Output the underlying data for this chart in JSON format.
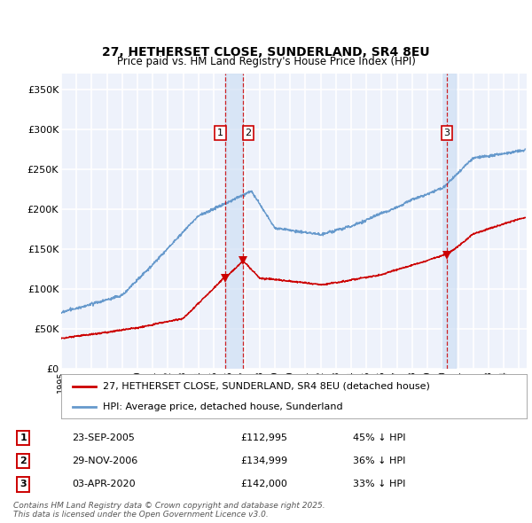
{
  "title": "27, HETHERSET CLOSE, SUNDERLAND, SR4 8EU",
  "subtitle": "Price paid vs. HM Land Registry's House Price Index (HPI)",
  "ylabel_ticks": [
    "£0",
    "£50K",
    "£100K",
    "£150K",
    "£200K",
    "£250K",
    "£300K",
    "£350K"
  ],
  "ytick_values": [
    0,
    50000,
    100000,
    150000,
    200000,
    250000,
    300000,
    350000
  ],
  "ylim": [
    0,
    370000
  ],
  "xlim_start": 1995.0,
  "xlim_end": 2025.5,
  "transactions": [
    {
      "label": "1",
      "date": "23-SEP-2005",
      "price": 112995,
      "pct": "45% ↓ HPI",
      "x_year": 2005.73
    },
    {
      "label": "2",
      "date": "29-NOV-2006",
      "price": 134999,
      "pct": "36% ↓ HPI",
      "x_year": 2006.91
    },
    {
      "label": "3",
      "date": "03-APR-2020",
      "price": 142000,
      "pct": "33% ↓ HPI",
      "x_year": 2020.26
    }
  ],
  "legend_entries": [
    {
      "label": "27, HETHERSET CLOSE, SUNDERLAND, SR4 8EU (detached house)",
      "color": "#cc0000"
    },
    {
      "label": "HPI: Average price, detached house, Sunderland",
      "color": "#6699cc"
    }
  ],
  "footer": "Contains HM Land Registry data © Crown copyright and database right 2025.\nThis data is licensed under the Open Government Licence v3.0.",
  "background_color": "#eef2fb",
  "grid_color": "#ffffff",
  "hpi_color": "#6699cc",
  "price_color": "#cc0000",
  "vline_color": "#cc0000",
  "shade_color": "#d0e0f5"
}
